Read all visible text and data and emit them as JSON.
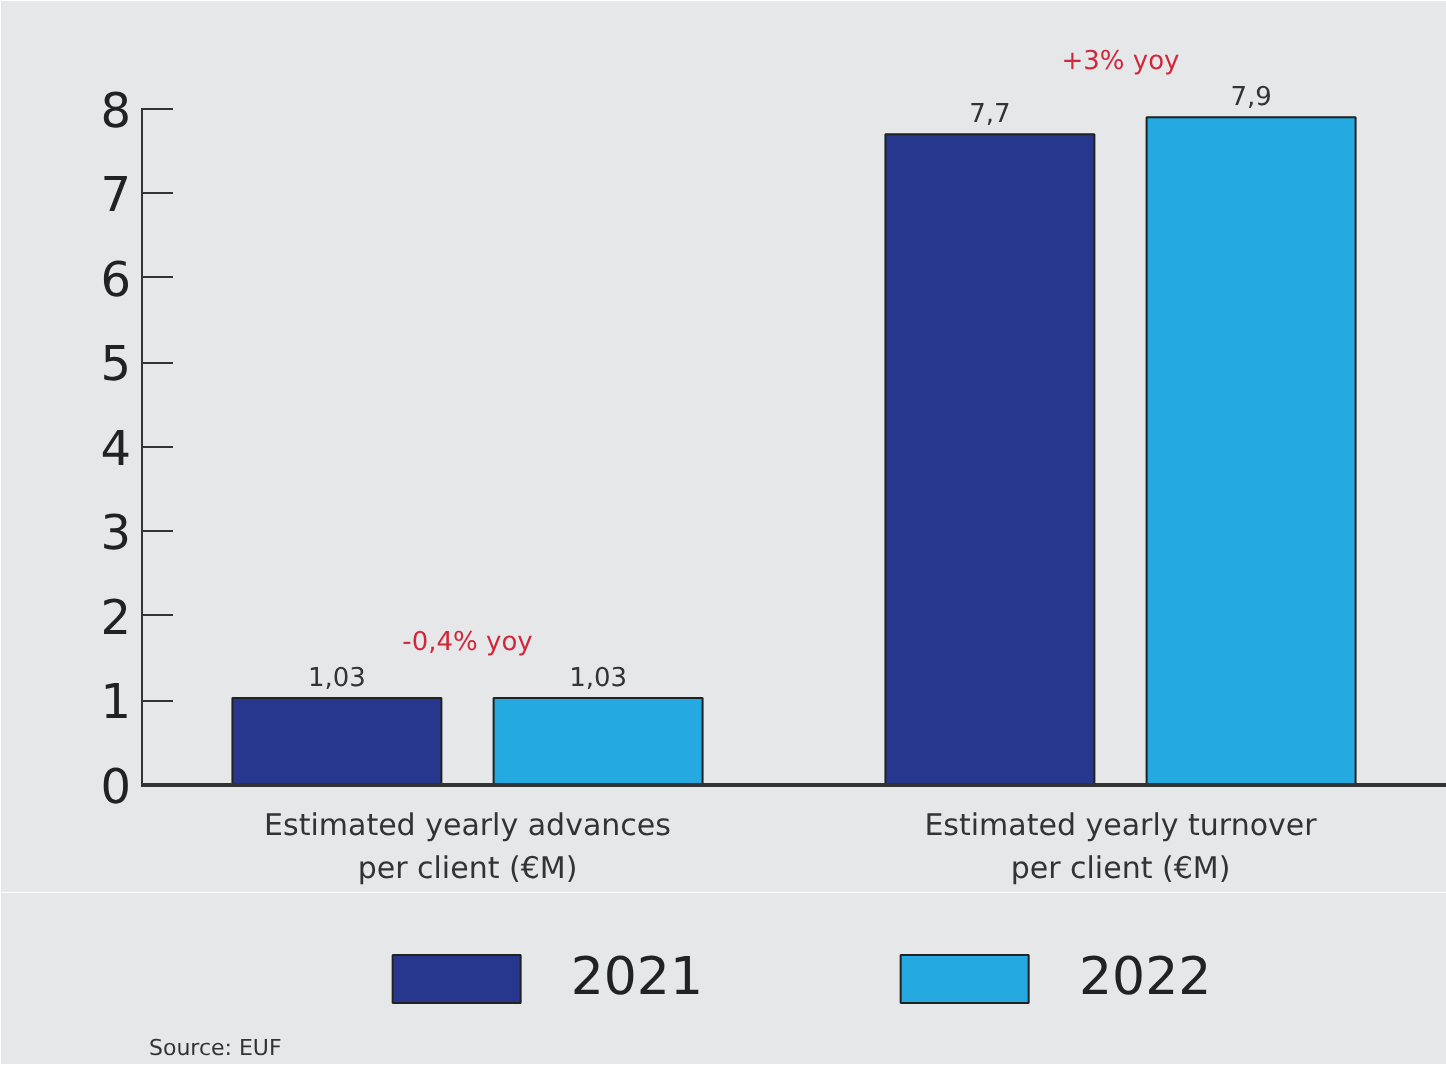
{
  "chart_data": {
    "type": "bar",
    "categories": [
      "Estimated yearly advances\nper client (€M)",
      "Estimated yearly turnover\nper client (€M)"
    ],
    "series": [
      {
        "name": "2021",
        "color": "#27378e",
        "values": [
          1.03,
          7.7
        ],
        "value_labels": [
          "1,03",
          "7,7"
        ]
      },
      {
        "name": "2022",
        "color": "#24a9e1",
        "values": [
          1.03,
          7.9
        ],
        "value_labels": [
          "1,03",
          "7,9"
        ]
      }
    ],
    "ylim": [
      0,
      8
    ],
    "yticks": [
      0,
      1,
      2,
      3,
      4,
      5,
      6,
      7,
      8
    ],
    "legend": "bottom",
    "annotations": [
      "-0,4% yoy",
      "+3% yoy",
      "Source: EUF"
    ]
  }
}
